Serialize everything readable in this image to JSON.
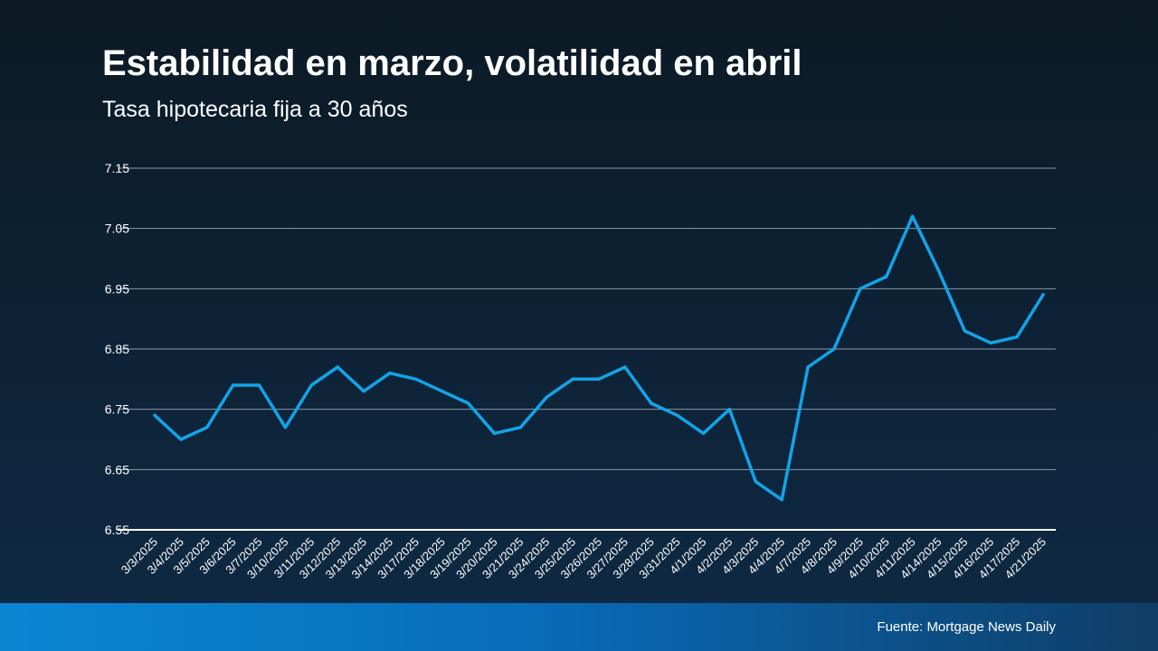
{
  "header": {
    "title": "Estabilidad en marzo, volatilidad en abril",
    "subtitle": "Tasa hipotecaria fija a 30 años"
  },
  "footer": {
    "source": "Fuente: Mortgage News Daily"
  },
  "colors": {
    "line": "#12a4e8",
    "grid": "#8a9aaa",
    "axis": "#ffffff",
    "text": "#ffffff"
  },
  "chart_data": {
    "type": "line",
    "title": "Estabilidad en marzo, volatilidad en abril",
    "subtitle": "Tasa hipotecaria fija a 30 años",
    "xlabel": "",
    "ylabel": "",
    "ylim": [
      6.55,
      7.15
    ],
    "yticks": [
      "6.55",
      "6.65",
      "6.75",
      "6.85",
      "6.95",
      "7.05",
      "7.15"
    ],
    "grid": true,
    "legend": "none",
    "categories": [
      "3/3/2025",
      "3/4/2025",
      "3/5/2025",
      "3/6/2025",
      "3/7/2025",
      "3/10/2025",
      "3/11/2025",
      "3/12/2025",
      "3/13/2025",
      "3/14/2025",
      "3/17/2025",
      "3/18/2025",
      "3/19/2025",
      "3/20/2025",
      "3/21/2025",
      "3/24/2025",
      "3/25/2025",
      "3/26/2025",
      "3/27/2025",
      "3/28/2025",
      "3/31/2025",
      "4/1/2025",
      "4/2/2025",
      "4/3/2025",
      "4/4/2025",
      "4/7/2025",
      "4/8/2025",
      "4/9/2025",
      "4/10/2025",
      "4/11/2025",
      "4/14/2025",
      "4/15/2025",
      "4/16/2025",
      "4/17/2025",
      "4/21/2025"
    ],
    "series": [
      {
        "values": [
          6.74,
          6.7,
          6.72,
          6.79,
          6.79,
          6.72,
          6.79,
          6.82,
          6.78,
          6.81,
          6.8,
          6.78,
          6.76,
          6.71,
          6.72,
          6.77,
          6.8,
          6.8,
          6.82,
          6.76,
          6.74,
          6.71,
          6.75,
          6.63,
          6.6,
          6.82,
          6.85,
          6.95,
          6.97,
          7.07,
          6.98,
          6.88,
          6.86,
          6.87,
          6.94
        ]
      }
    ]
  }
}
